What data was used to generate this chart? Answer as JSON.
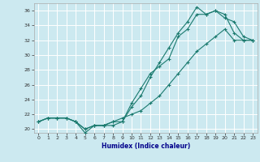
{
  "xlabel": "Humidex (Indice chaleur)",
  "bg_color": "#cce9f0",
  "grid_color": "#ffffff",
  "line_color": "#1a7a6e",
  "xlim": [
    -0.5,
    23.5
  ],
  "ylim": [
    19.5,
    37.0
  ],
  "xticks": [
    0,
    1,
    2,
    3,
    4,
    5,
    6,
    7,
    8,
    9,
    10,
    11,
    12,
    13,
    14,
    15,
    16,
    17,
    18,
    19,
    20,
    21,
    22,
    23
  ],
  "yticks": [
    20,
    22,
    24,
    26,
    28,
    30,
    32,
    34,
    36
  ],
  "curve1_y": [
    21.0,
    21.5,
    21.5,
    21.5,
    21.0,
    20.0,
    20.5,
    20.5,
    21.0,
    21.0,
    23.5,
    25.5,
    27.5,
    28.5,
    29.5,
    32.5,
    33.5,
    35.5,
    35.5,
    36.0,
    35.0,
    34.5,
    32.5,
    32.0
  ],
  "curve2_y": [
    21.0,
    21.5,
    21.5,
    21.5,
    21.0,
    19.5,
    20.5,
    20.5,
    20.5,
    21.0,
    23.0,
    24.5,
    27.0,
    29.0,
    31.0,
    33.0,
    34.5,
    36.5,
    35.5,
    36.0,
    35.5,
    33.0,
    32.0,
    32.0
  ],
  "curve3_y": [
    21.0,
    21.5,
    21.5,
    21.5,
    21.0,
    20.0,
    20.5,
    20.5,
    21.0,
    21.5,
    22.0,
    22.5,
    23.5,
    24.5,
    26.0,
    27.5,
    29.0,
    30.5,
    31.5,
    32.5,
    33.5,
    32.0,
    32.0,
    32.0
  ],
  "xlabel_fontsize": 5.5,
  "xlabel_color": "#00008b",
  "tick_fontsize": 4.5,
  "tick_color": "#333333",
  "lw": 0.8,
  "ms": 3.0
}
